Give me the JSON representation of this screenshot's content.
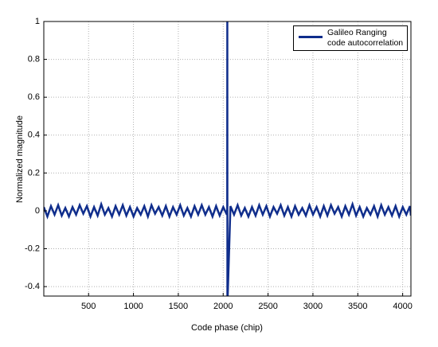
{
  "chart_data": {
    "type": "line",
    "xlabel": "Code phase (chip)",
    "ylabel": "Normalized magnitude",
    "x": [
      1,
      41,
      81,
      121,
      161,
      201,
      241,
      281,
      321,
      361,
      401,
      441,
      481,
      521,
      561,
      601,
      641,
      681,
      721,
      761,
      801,
      841,
      881,
      921,
      961,
      1001,
      1041,
      1081,
      1121,
      1161,
      1201,
      1241,
      1281,
      1321,
      1361,
      1401,
      1441,
      1481,
      1521,
      1561,
      1601,
      1641,
      1681,
      1721,
      1761,
      1801,
      1841,
      1881,
      1921,
      1961,
      2001,
      2041,
      2045,
      2046,
      2047,
      2081,
      2121,
      2161,
      2201,
      2241,
      2281,
      2321,
      2361,
      2401,
      2441,
      2481,
      2521,
      2561,
      2601,
      2641,
      2681,
      2721,
      2761,
      2801,
      2841,
      2881,
      2921,
      2961,
      3001,
      3041,
      3081,
      3121,
      3161,
      3201,
      3241,
      3281,
      3321,
      3361,
      3401,
      3441,
      3481,
      3521,
      3561,
      3601,
      3641,
      3681,
      3721,
      3761,
      3801,
      3841,
      3881,
      3921,
      3961,
      4001,
      4041,
      4081,
      4092
    ],
    "series": [
      {
        "name": "Galileo Ranging code autocorrelation",
        "color": "#0f2d8c",
        "values": [
          0.02,
          -0.03,
          0.025,
          -0.02,
          0.03,
          -0.025,
          0.015,
          -0.03,
          0.02,
          -0.02,
          0.03,
          -0.015,
          0.025,
          -0.03,
          0.02,
          -0.025,
          0.035,
          -0.02,
          0.015,
          -0.03,
          0.025,
          -0.02,
          0.03,
          -0.025,
          0.02,
          -0.03,
          0.015,
          -0.02,
          0.025,
          -0.03,
          0.03,
          -0.015,
          0.02,
          -0.025,
          0.025,
          -0.03,
          0.02,
          -0.02,
          0.03,
          -0.025,
          0.015,
          -0.03,
          0.025,
          -0.02,
          0.03,
          -0.02,
          0.02,
          -0.03,
          0.025,
          -0.025,
          0.02,
          -0.02,
          0.01,
          1,
          -0.5,
          0.025,
          -0.02,
          0.03,
          -0.025,
          0.015,
          -0.03,
          0.02,
          -0.025,
          0.03,
          -0.02,
          0.025,
          -0.03,
          0.02,
          -0.015,
          0.03,
          -0.025,
          0.02,
          -0.03,
          0.025,
          -0.02,
          0.015,
          -0.025,
          0.03,
          -0.02,
          0.02,
          -0.03,
          0.025,
          -0.025,
          0.03,
          -0.015,
          0.02,
          -0.03,
          0.025,
          -0.02,
          0.035,
          -0.025,
          0.02,
          -0.03,
          0.015,
          -0.02,
          0.025,
          -0.03,
          0.03,
          -0.02,
          0.02,
          -0.025,
          0.025,
          -0.03,
          0.02,
          -0.02,
          0.025,
          -0.025
        ]
      }
    ],
    "xlim": [
      1,
      4092
    ],
    "ylim": [
      -0.45,
      1
    ],
    "xticks": [
      500,
      1000,
      1500,
      2000,
      2500,
      3000,
      3500,
      4000
    ],
    "yticks": [
      -0.4,
      -0.2,
      0,
      0.2,
      0.4,
      0.6,
      0.8,
      1
    ],
    "grid": true,
    "legend": "upper right"
  }
}
